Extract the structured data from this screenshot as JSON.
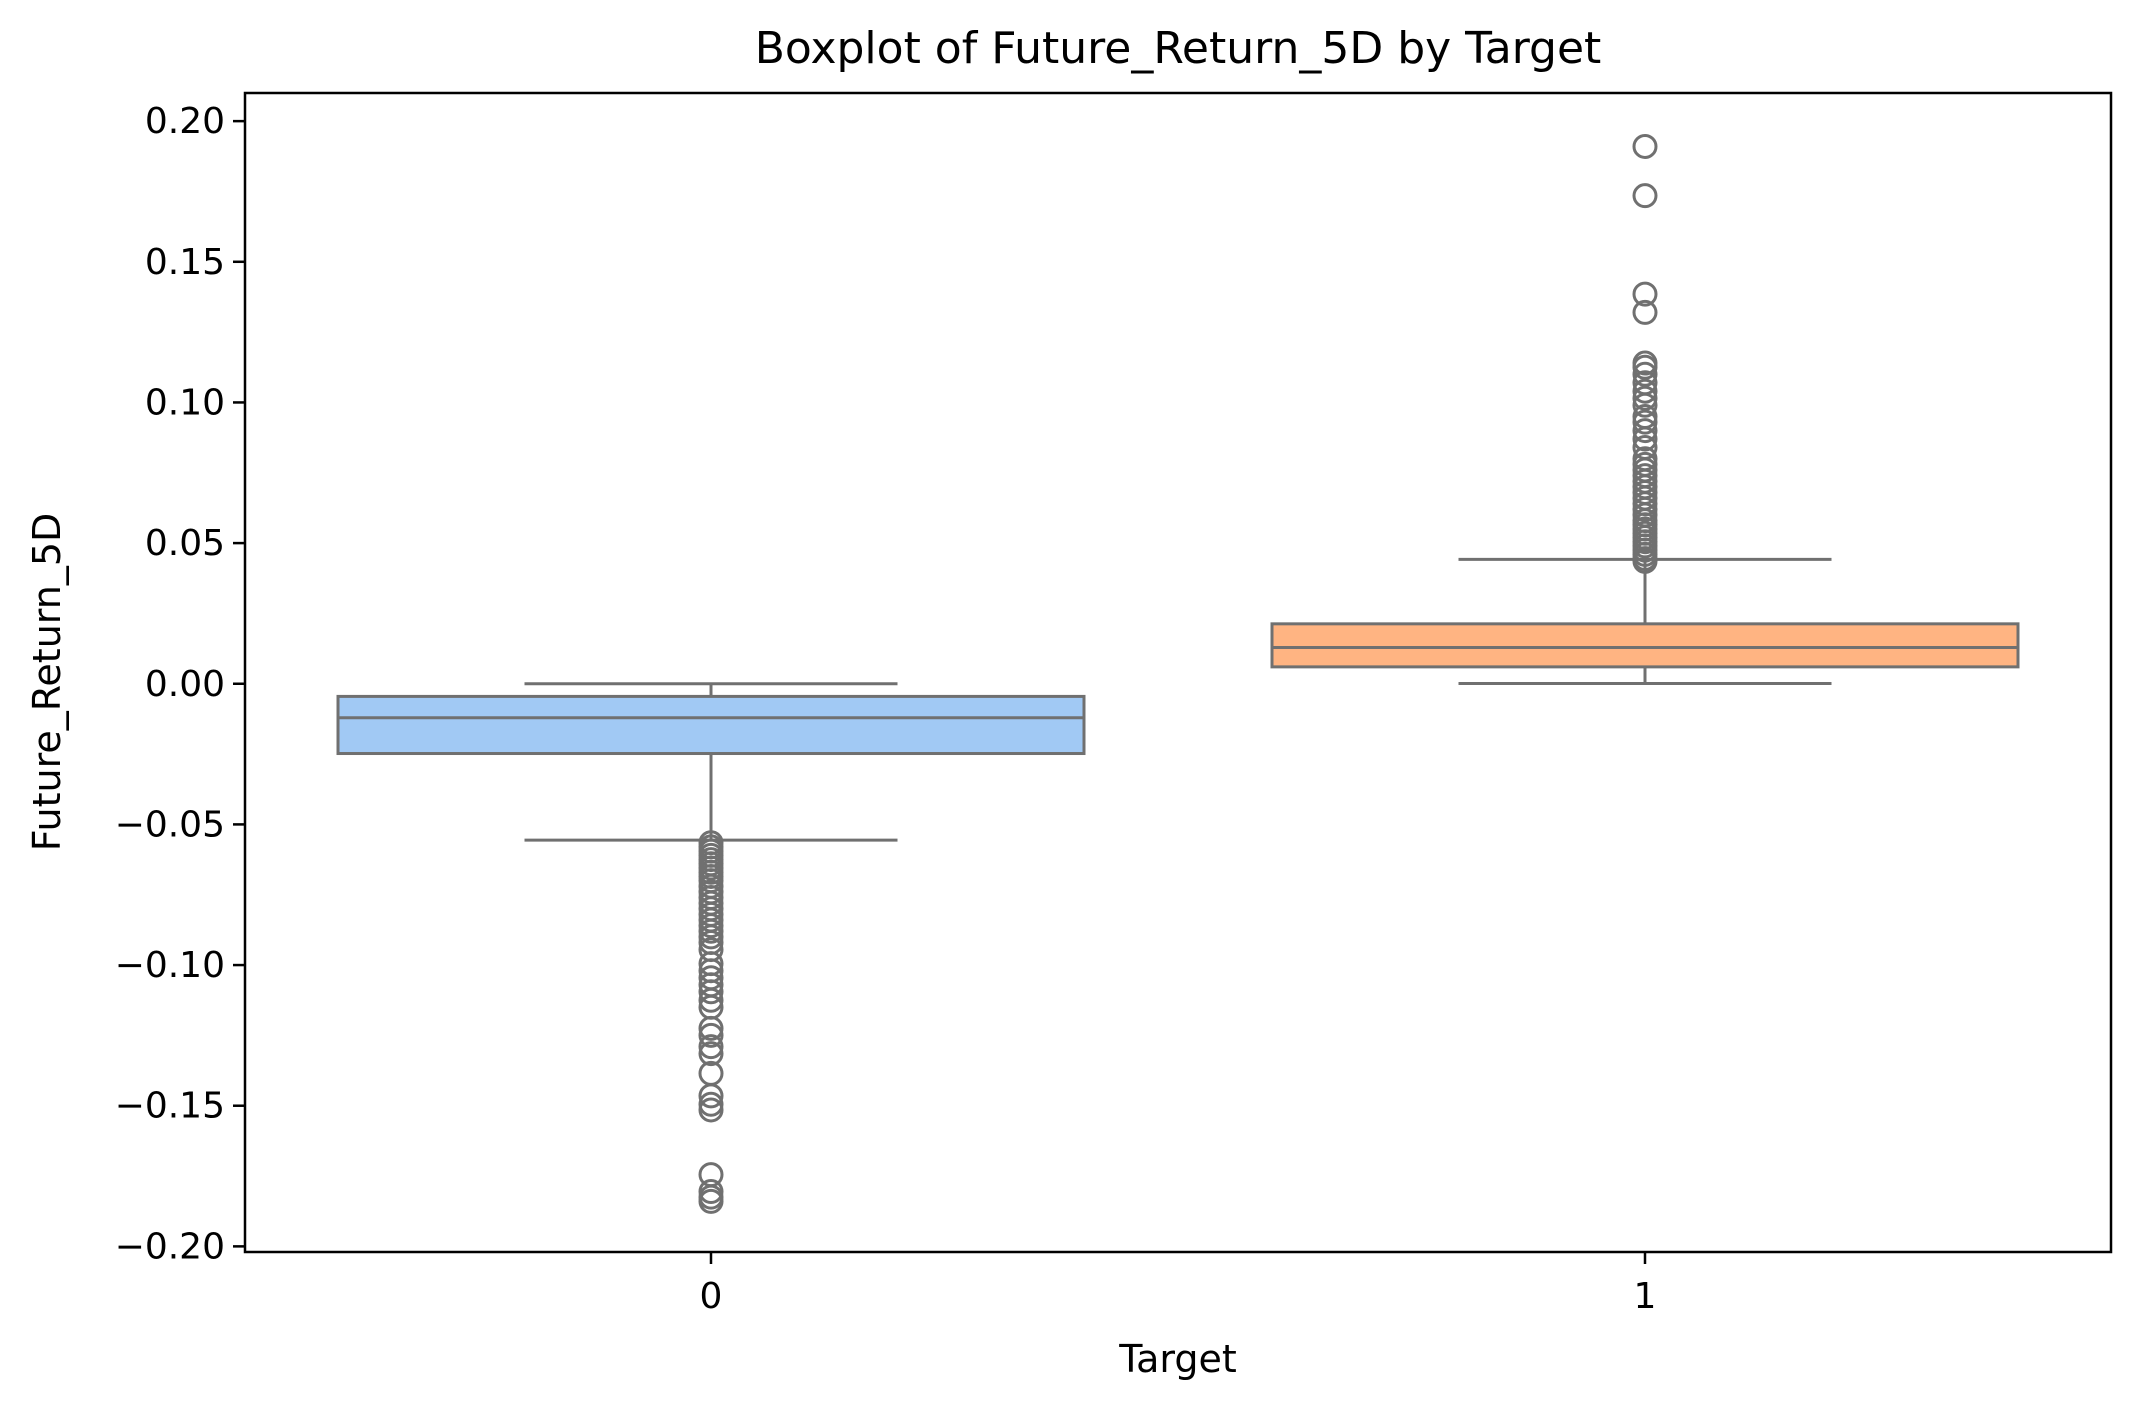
{
  "chart_data": {
    "type": "box",
    "title": "Boxplot of Future_Return_5D by Target",
    "xlabel": "Target",
    "ylabel": "Future_Return_5D",
    "ylim": [
      -0.202,
      0.21
    ],
    "yticks": [
      -0.2,
      -0.15,
      -0.1,
      -0.05,
      0.0,
      0.05,
      0.1,
      0.15,
      0.2
    ],
    "ytick_labels": [
      "−0.20",
      "−0.15",
      "−0.10",
      "−0.05",
      "0.00",
      "0.05",
      "0.10",
      "0.15",
      "0.20"
    ],
    "categories": [
      "0",
      "1"
    ],
    "grid": false,
    "boxes": [
      {
        "category": "0",
        "q1": -0.0248,
        "median": -0.0121,
        "q3": -0.0045,
        "whisker_low": -0.0556,
        "whisker_high": 0.0,
        "fill": "#a1c9f4",
        "outliers": [
          -0.0565,
          -0.058,
          -0.0595,
          -0.061,
          -0.0625,
          -0.064,
          -0.0655,
          -0.067,
          -0.0685,
          -0.07,
          -0.072,
          -0.074,
          -0.076,
          -0.078,
          -0.08,
          -0.082,
          -0.084,
          -0.086,
          -0.088,
          -0.09,
          -0.092,
          -0.0945,
          -0.0995,
          -0.102,
          -0.1045,
          -0.107,
          -0.1095,
          -0.1125,
          -0.115,
          -0.1225,
          -0.125,
          -0.129,
          -0.1315,
          -0.1385,
          -0.1465,
          -0.1495,
          -0.1515,
          -0.1745,
          -0.1805,
          -0.1825,
          -0.184
        ]
      },
      {
        "category": "1",
        "q1": 0.006,
        "median": 0.0129,
        "q3": 0.0213,
        "whisker_low": 0.0001,
        "whisker_high": 0.0442,
        "fill": "#ffb482",
        "outliers": [
          0.0435,
          0.0445,
          0.046,
          0.0475,
          0.049,
          0.0505,
          0.052,
          0.0535,
          0.055,
          0.0565,
          0.058,
          0.06,
          0.062,
          0.064,
          0.066,
          0.068,
          0.07,
          0.072,
          0.074,
          0.076,
          0.078,
          0.08,
          0.084,
          0.087,
          0.09,
          0.093,
          0.095,
          0.099,
          0.1015,
          0.104,
          0.107,
          0.11,
          0.1125,
          0.114,
          0.132,
          0.1385,
          0.1735,
          0.191
        ]
      }
    ],
    "colors": {
      "line": "#707070",
      "axes": "#000000"
    }
  }
}
